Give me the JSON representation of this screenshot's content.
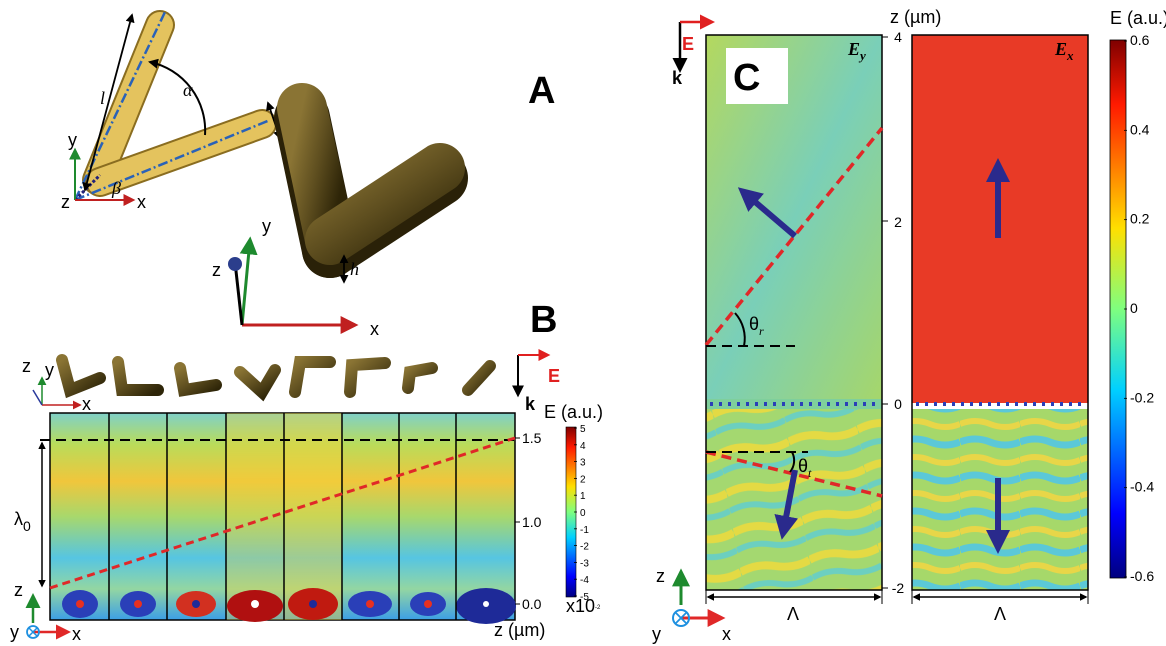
{
  "panel_a": {
    "label": "A",
    "inset": {
      "l": "l",
      "alpha": "α",
      "w": "w",
      "beta": "β",
      "axis_y": "y",
      "axis_z": "z",
      "axis_x": "x"
    },
    "main": {
      "h": "h",
      "axis_y": "y",
      "axis_z": "z",
      "axis_x": "x"
    }
  },
  "panel_b": {
    "label": "B",
    "shape_axes": {
      "z": "z",
      "y": "y",
      "x": "x"
    },
    "incidence": {
      "k": "k",
      "e": "E"
    },
    "wavelength": {
      "symbol": "λ",
      "subscript": "0"
    },
    "axis_label": "z (µm)",
    "ticks": [
      "1.5",
      "1.0",
      "0.0"
    ],
    "colorbar": {
      "title": "E (a.u.)",
      "ticks": [
        "5",
        "4",
        "3",
        "2",
        "1",
        "0",
        "-1",
        "-2",
        "-3",
        "-4",
        "-5"
      ],
      "scale_base": "x10",
      "scale_exp": "-2"
    },
    "frame_axes": {
      "z": "z",
      "y": "y",
      "x": "x"
    }
  },
  "panel_c": {
    "label": "C",
    "incidence": {
      "e": "E",
      "k": "k"
    },
    "left_map": {
      "symbol": "E",
      "subscript": "y",
      "theta_r": {
        "symbol": "θ",
        "subscript": "r"
      },
      "theta_t": {
        "symbol": "θ",
        "subscript": "t"
      },
      "period": "Λ"
    },
    "right_map": {
      "symbol": "E",
      "subscript": "x",
      "period": "Λ"
    },
    "axis_label": "z (µm)",
    "ticks": [
      "4",
      "2",
      "0",
      "-2"
    ],
    "colorbar": {
      "title": "E (a.u.)",
      "ticks": [
        "0.6",
        "0.4",
        "0.2",
        "0",
        "-0.2",
        "-0.4",
        "-0.6"
      ]
    },
    "frame_axes": {
      "z": "z",
      "y": "y",
      "x": "x"
    }
  }
}
